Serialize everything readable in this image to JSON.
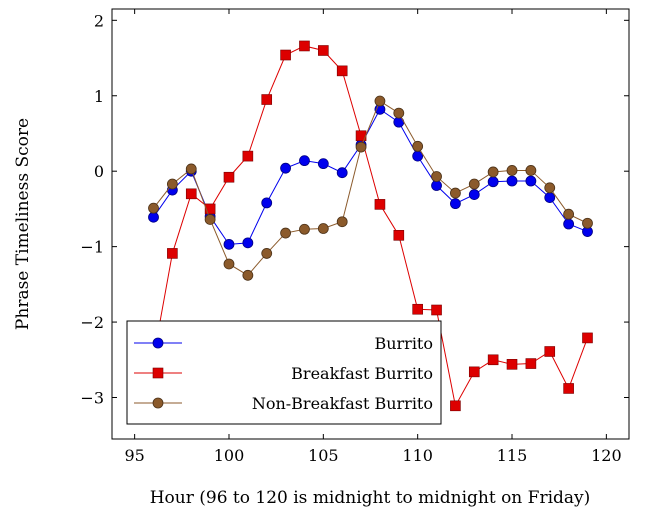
{
  "chart_data": {
    "type": "line",
    "xlabel": "Hour (96 to 120 is midnight to midnight on Friday)",
    "ylabel": "Phrase Timeliness Score",
    "xlim": [
      93.8,
      121.2
    ],
    "ylim": [
      -3.55,
      2.15
    ],
    "x_ticks": [
      95,
      100,
      105,
      110,
      115,
      120
    ],
    "y_ticks": [
      -3,
      -2,
      -1,
      0,
      1,
      2
    ],
    "x_tick_labels": [
      "95",
      "100",
      "105",
      "110",
      "115",
      "120"
    ],
    "y_tick_labels": [
      "−3",
      "−2",
      "−1",
      "0",
      "1",
      "2"
    ],
    "grid": false,
    "legend_position": "bottom-left",
    "x": [
      96,
      97,
      98,
      99,
      100,
      101,
      102,
      103,
      104,
      105,
      106,
      107,
      108,
      109,
      110,
      111,
      112,
      113,
      114,
      115,
      116,
      117,
      118,
      119
    ],
    "series": [
      {
        "name": "Burrito",
        "color": "#0000ee",
        "marker": "circle",
        "values": [
          -0.61,
          -0.25,
          0.0,
          -0.6,
          -0.97,
          -0.95,
          -0.42,
          0.04,
          0.14,
          0.1,
          -0.02,
          0.35,
          0.82,
          0.65,
          0.2,
          -0.19,
          -0.43,
          -0.31,
          -0.14,
          -0.13,
          -0.13,
          -0.35,
          -0.7,
          -0.8
        ]
      },
      {
        "name": "Breakfast Burrito",
        "color": "#dd0000",
        "marker": "square",
        "values": [
          -2.47,
          -1.09,
          -0.3,
          -0.5,
          -0.08,
          0.2,
          0.95,
          1.54,
          1.66,
          1.6,
          1.33,
          0.47,
          -0.44,
          -0.85,
          -1.83,
          -1.84,
          -3.11,
          -2.66,
          -2.5,
          -2.56,
          -2.55,
          -2.39,
          -2.88,
          -2.21
        ]
      },
      {
        "name": "Non-Breakfast Burrito",
        "color": "#8b5a2b",
        "marker": "circle",
        "values": [
          -0.49,
          -0.17,
          0.03,
          -0.64,
          -1.23,
          -1.38,
          -1.09,
          -0.82,
          -0.77,
          -0.76,
          -0.67,
          0.32,
          0.93,
          0.77,
          0.33,
          -0.07,
          -0.29,
          -0.17,
          -0.01,
          0.01,
          0.01,
          -0.22,
          -0.57,
          -0.69
        ]
      }
    ]
  }
}
